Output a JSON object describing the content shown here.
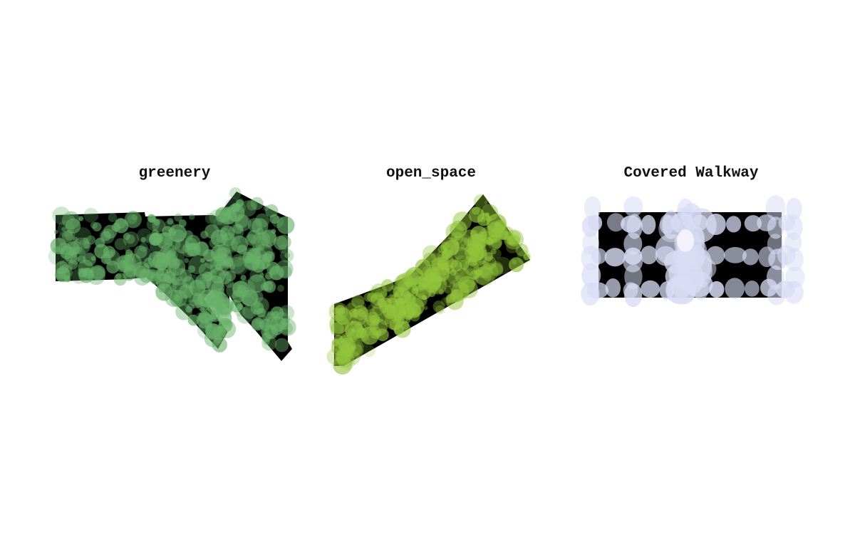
{
  "panels": [
    {
      "title": "greenery",
      "color": "#68b06a"
    },
    {
      "title": "open_space",
      "color": "#93c43c"
    },
    {
      "title": "Covered Walkway",
      "color": "#d8dcf4"
    }
  ],
  "background": "#ffffff",
  "footprint_color": "#000000"
}
